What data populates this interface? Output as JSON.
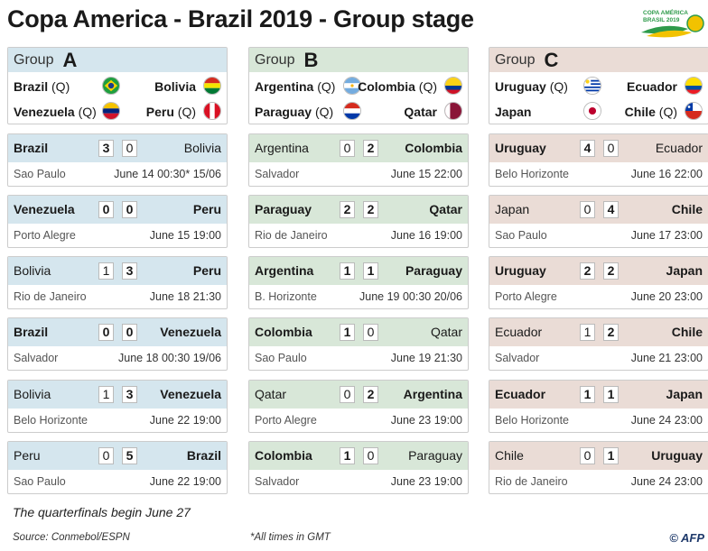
{
  "title": "Copa America - Brazil 2019 - Group stage",
  "logo_text": [
    "COPA AMÉRICA",
    "BRASIL 2019"
  ],
  "groups": [
    {
      "label": "Group",
      "letter": "A",
      "teams": [
        {
          "name": "Brazil",
          "q": "(Q)",
          "flag": "brazil-flag"
        },
        {
          "name": "Bolivia",
          "q": "",
          "flag": "bolivia-flag"
        },
        {
          "name": "Venezuela",
          "q": "(Q)",
          "flag": "venezuela-flag"
        },
        {
          "name": "Peru",
          "q": "(Q)",
          "flag": "peru-flag"
        }
      ],
      "matches": [
        {
          "home": "Brazil",
          "home_win": true,
          "s1": "3",
          "s2": "0",
          "away": "Bolivia",
          "away_win": false,
          "venue": "Sao Paulo",
          "date": "June 14  00:30*  15/06"
        },
        {
          "home": "Venezuela",
          "home_win": true,
          "s1": "0",
          "s2": "0",
          "away": "Peru",
          "away_win": true,
          "venue": "Porto Alegre",
          "date": "June 15  19:00"
        },
        {
          "home": "Bolivia",
          "home_win": false,
          "s1": "1",
          "s2": "3",
          "away": "Peru",
          "away_win": true,
          "venue": "Rio de Janeiro",
          "date": "June 18  21:30"
        },
        {
          "home": "Brazil",
          "home_win": true,
          "s1": "0",
          "s2": "0",
          "away": "Venezuela",
          "away_win": true,
          "venue": "Salvador",
          "date": "June 18  00:30 19/06"
        },
        {
          "home": "Bolivia",
          "home_win": false,
          "s1": "1",
          "s2": "3",
          "away": "Venezuela",
          "away_win": true,
          "venue": "Belo Horizonte",
          "date": "June 22  19:00"
        },
        {
          "home": "Peru",
          "home_win": false,
          "s1": "0",
          "s2": "5",
          "away": "Brazil",
          "away_win": true,
          "venue": "Sao Paulo",
          "date": "June 22  19:00"
        }
      ]
    },
    {
      "label": "Group",
      "letter": "B",
      "teams": [
        {
          "name": "Argentina",
          "q": "(Q)",
          "flag": "argentina-flag"
        },
        {
          "name": "Colombia",
          "q": "(Q)",
          "flag": "colombia-flag"
        },
        {
          "name": "Paraguay",
          "q": "(Q)",
          "flag": "paraguay-flag"
        },
        {
          "name": "Qatar",
          "q": "",
          "flag": "qatar-flag"
        }
      ],
      "matches": [
        {
          "home": "Argentina",
          "home_win": false,
          "s1": "0",
          "s2": "2",
          "away": "Colombia",
          "away_win": true,
          "venue": "Salvador",
          "date": "June 15  22:00"
        },
        {
          "home": "Paraguay",
          "home_win": true,
          "s1": "2",
          "s2": "2",
          "away": "Qatar",
          "away_win": true,
          "venue": "Rio de Janeiro",
          "date": "June 16  19:00"
        },
        {
          "home": "Argentina",
          "home_win": true,
          "s1": "1",
          "s2": "1",
          "away": "Paraguay",
          "away_win": true,
          "venue": "B. Horizonte",
          "date": "June 19  00:30 20/06"
        },
        {
          "home": "Colombia",
          "home_win": true,
          "s1": "1",
          "s2": "0",
          "away": "Qatar",
          "away_win": false,
          "venue": "Sao Paulo",
          "date": "June 19  21:30"
        },
        {
          "home": "Qatar",
          "home_win": false,
          "s1": "0",
          "s2": "2",
          "away": "Argentina",
          "away_win": true,
          "venue": "Porto Alegre",
          "date": "June 23  19:00"
        },
        {
          "home": "Colombia",
          "home_win": true,
          "s1": "1",
          "s2": "0",
          "away": "Paraguay",
          "away_win": false,
          "venue": "Salvador",
          "date": "June 23  19:00"
        }
      ]
    },
    {
      "label": "Group",
      "letter": "C",
      "teams": [
        {
          "name": "Uruguay",
          "q": "(Q)",
          "flag": "uruguay-flag"
        },
        {
          "name": "Ecuador",
          "q": "",
          "flag": "ecuador-flag"
        },
        {
          "name": "Japan",
          "q": "",
          "flag": "japan-flag"
        },
        {
          "name": "Chile",
          "q": "(Q)",
          "flag": "chile-flag"
        }
      ],
      "matches": [
        {
          "home": "Uruguay",
          "home_win": true,
          "s1": "4",
          "s2": "0",
          "away": "Ecuador",
          "away_win": false,
          "venue": "Belo Horizonte",
          "date": "June 16  22:00"
        },
        {
          "home": "Japan",
          "home_win": false,
          "s1": "0",
          "s2": "4",
          "away": "Chile",
          "away_win": true,
          "venue": "Sao Paulo",
          "date": "June 17  23:00"
        },
        {
          "home": "Uruguay",
          "home_win": true,
          "s1": "2",
          "s2": "2",
          "away": "Japan",
          "away_win": true,
          "venue": "Porto Alegre",
          "date": "June 20  23:00"
        },
        {
          "home": "Ecuador",
          "home_win": false,
          "s1": "1",
          "s2": "2",
          "away": "Chile",
          "away_win": true,
          "venue": "Salvador",
          "date": "June 21  23:00"
        },
        {
          "home": "Ecuador",
          "home_win": true,
          "s1": "1",
          "s2": "1",
          "away": "Japan",
          "away_win": true,
          "venue": "Belo Horizonte",
          "date": "June 24  23:00"
        },
        {
          "home": "Chile",
          "home_win": false,
          "s1": "0",
          "s2": "1",
          "away": "Uruguay",
          "away_win": true,
          "venue": "Rio de Janeiro",
          "date": "June 24  23:00"
        }
      ]
    }
  ],
  "note": "The quarterfinals begin June 27",
  "source": "Source: Conmebol/ESPN",
  "times_note": "*All times in  GMT",
  "credit": "© AFP"
}
